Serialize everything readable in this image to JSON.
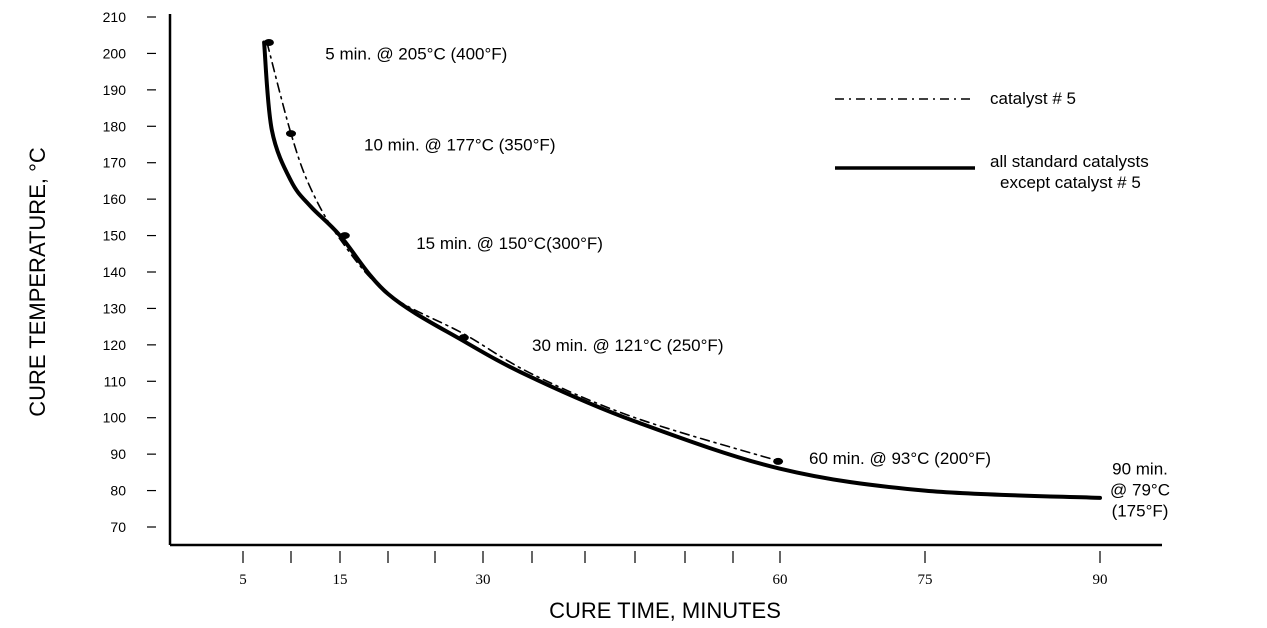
{
  "chart_data": {
    "type": "line",
    "title": "",
    "xlabel": "CURE TIME, MINUTES",
    "ylabel": "CURE TEMPERATURE, °C",
    "xlim": [
      0,
      95
    ],
    "ylim": [
      65,
      212
    ],
    "grid": false,
    "legend_position": "top-right",
    "y_ticks": [
      70,
      80,
      90,
      100,
      110,
      120,
      130,
      140,
      150,
      160,
      170,
      180,
      190,
      200,
      210
    ],
    "y_tick_labels": [
      "70",
      "80",
      "90",
      "100",
      "110",
      "120",
      "130",
      "140",
      "150",
      "160",
      "170",
      "180",
      "190",
      "200",
      "210"
    ],
    "x_ticks": [
      5,
      10,
      15,
      20,
      25,
      30,
      35,
      40,
      45,
      50,
      55,
      60,
      75,
      90
    ],
    "x_tick_labels": [
      "5",
      "",
      "15",
      "",
      "",
      "30",
      "",
      "",
      "",
      "",
      "",
      "60",
      "75",
      "90"
    ],
    "series": [
      {
        "name": "catalyst # 5",
        "style": "dash-dot",
        "x": [
          7.5,
          10,
          12,
          15,
          20,
          28,
          35,
          45,
          60
        ],
        "y": [
          203,
          178,
          163,
          149,
          134,
          123,
          112,
          100,
          88
        ]
      },
      {
        "name": "all standard catalysts except catalyst # 5",
        "style": "solid",
        "x": [
          7.2,
          8,
          10,
          12,
          15,
          20,
          28,
          35,
          45,
          60,
          75,
          90
        ],
        "y": [
          203,
          179,
          165,
          158,
          150,
          134,
          121,
          111,
          99,
          86,
          80,
          78
        ]
      }
    ],
    "points": [
      {
        "x": 7.7,
        "y": 203
      },
      {
        "x": 10,
        "y": 178
      },
      {
        "x": 15.5,
        "y": 150
      },
      {
        "x": 28,
        "y": 122
      },
      {
        "x": 59.8,
        "y": 88
      }
    ],
    "annotations": [
      {
        "lines": [
          "5 min. @ 205°C (400°F)"
        ],
        "x": 13.5,
        "y": 200
      },
      {
        "lines": [
          "10 min. @ 177°C (350°F)"
        ],
        "x": 17.5,
        "y": 175
      },
      {
        "lines": [
          "15 min. @ 150°C(300°F)"
        ],
        "x": 23,
        "y": 148
      },
      {
        "lines": [
          "30 min. @ 121°C (250°F)"
        ],
        "x": 35,
        "y": 120
      },
      {
        "lines": [
          "60 min. @ 93°C (200°F)"
        ],
        "x": 63,
        "y": 89
      },
      {
        "lines": [
          "90 min.",
          "@ 79°C",
          "(175°F)"
        ],
        "x": 94,
        "y": 86
      }
    ],
    "legend": [
      {
        "style": "dash-dot",
        "lines": [
          "catalyst # 5"
        ]
      },
      {
        "style": "solid",
        "lines": [
          "all standard catalysts",
          "except catalyst # 5"
        ]
      }
    ]
  }
}
